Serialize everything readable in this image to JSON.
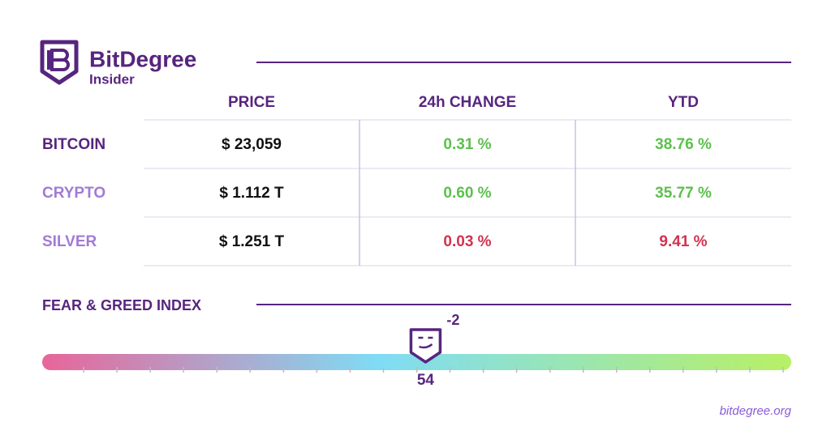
{
  "brand": {
    "name": "BitDegree",
    "sub": "Insider"
  },
  "table": {
    "columns": [
      "PRICE",
      "24h CHANGE",
      "YTD"
    ],
    "rows": [
      [
        "BITCOIN",
        "$ 23,059",
        "0.31 %",
        "38.76 %"
      ],
      [
        "CRYPTO",
        "$ 1.112 T",
        "0.60 %",
        "35.77 %"
      ],
      [
        "SILVER",
        "$ 1.251 T",
        "0.03 %",
        "9.41 %"
      ]
    ]
  },
  "fear_greed": {
    "title": "FEAR & GREED INDEX",
    "value": 54,
    "change": -2
  },
  "footer": "bitdegree.org"
}
